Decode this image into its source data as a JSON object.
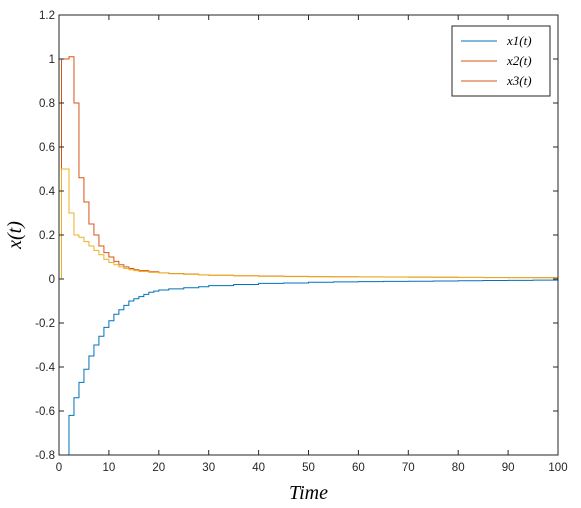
{
  "chart_data": {
    "type": "line",
    "step": true,
    "xlabel": "Time",
    "ylabel": "x(t)",
    "xlim": [
      0,
      100
    ],
    "ylim": [
      -0.8,
      1.2
    ],
    "xticks": [
      "0",
      "10",
      "20",
      "30",
      "40",
      "50",
      "60",
      "70",
      "80",
      "90",
      "100"
    ],
    "yticks": [
      "-0.8",
      "-0.6",
      "-0.4",
      "-0.2",
      "0",
      "0.2",
      "0.4",
      "0.6",
      "0.8",
      "1",
      "1.2"
    ],
    "grid": false,
    "legend_position": "top-right",
    "legend": [
      "x1(t)",
      "x2(t)",
      "x3(t)"
    ],
    "series": [
      {
        "name": "x1(t)",
        "color": "#0072BD",
        "x": [
          0,
          1,
          2,
          3,
          4,
          5,
          6,
          7,
          8,
          9,
          10,
          11,
          12,
          13,
          14,
          15,
          16,
          17,
          18,
          19,
          20,
          22,
          25,
          28,
          30,
          35,
          40,
          45,
          50,
          55,
          60,
          65,
          70,
          75,
          80,
          85,
          90,
          95,
          100
        ],
        "y": [
          -0.8,
          -0.8,
          -0.62,
          -0.54,
          -0.47,
          -0.41,
          -0.35,
          -0.3,
          -0.26,
          -0.22,
          -0.19,
          -0.16,
          -0.14,
          -0.12,
          -0.1,
          -0.09,
          -0.08,
          -0.07,
          -0.06,
          -0.055,
          -0.05,
          -0.045,
          -0.04,
          -0.035,
          -0.03,
          -0.025,
          -0.02,
          -0.018,
          -0.015,
          -0.013,
          -0.012,
          -0.011,
          -0.01,
          -0.009,
          -0.008,
          -0.007,
          -0.006,
          -0.005,
          -0.005
        ]
      },
      {
        "name": "x2(t)",
        "color": "#D95319",
        "x": [
          0,
          0.5,
          2,
          3,
          4,
          5,
          6,
          7,
          8,
          9,
          10,
          11,
          12,
          13,
          14,
          15,
          16,
          18,
          20,
          22,
          25,
          28,
          30,
          35,
          40,
          45,
          50,
          55,
          60,
          65,
          70,
          75,
          80,
          85,
          90,
          95,
          100
        ],
        "y": [
          0,
          1.0,
          1.01,
          0.8,
          0.46,
          0.35,
          0.25,
          0.2,
          0.15,
          0.12,
          0.1,
          0.08,
          0.065,
          0.055,
          0.048,
          0.042,
          0.038,
          0.033,
          0.028,
          0.025,
          0.022,
          0.019,
          0.017,
          0.015,
          0.013,
          0.012,
          0.011,
          0.01,
          0.0095,
          0.009,
          0.0085,
          0.008,
          0.0075,
          0.007,
          0.0065,
          0.006,
          0.005
        ]
      },
      {
        "name": "x3(t)",
        "color": "#EDB120",
        "x": [
          0,
          0.5,
          2,
          3,
          4,
          5,
          6,
          7,
          8,
          9,
          10,
          11,
          12,
          13,
          14,
          15,
          16,
          18,
          20,
          22,
          25,
          28,
          30,
          35,
          40,
          45,
          50,
          55,
          60,
          65,
          70,
          75,
          80,
          85,
          90,
          95,
          100
        ],
        "y": [
          0,
          0.5,
          0.3,
          0.2,
          0.19,
          0.17,
          0.15,
          0.13,
          0.11,
          0.09,
          0.075,
          0.065,
          0.055,
          0.048,
          0.042,
          0.038,
          0.034,
          0.03,
          0.027,
          0.024,
          0.021,
          0.018,
          0.016,
          0.014,
          0.012,
          0.011,
          0.01,
          0.0095,
          0.009,
          0.0085,
          0.008,
          0.0075,
          0.007,
          0.0065,
          0.006,
          0.0055,
          0.005
        ]
      }
    ]
  }
}
